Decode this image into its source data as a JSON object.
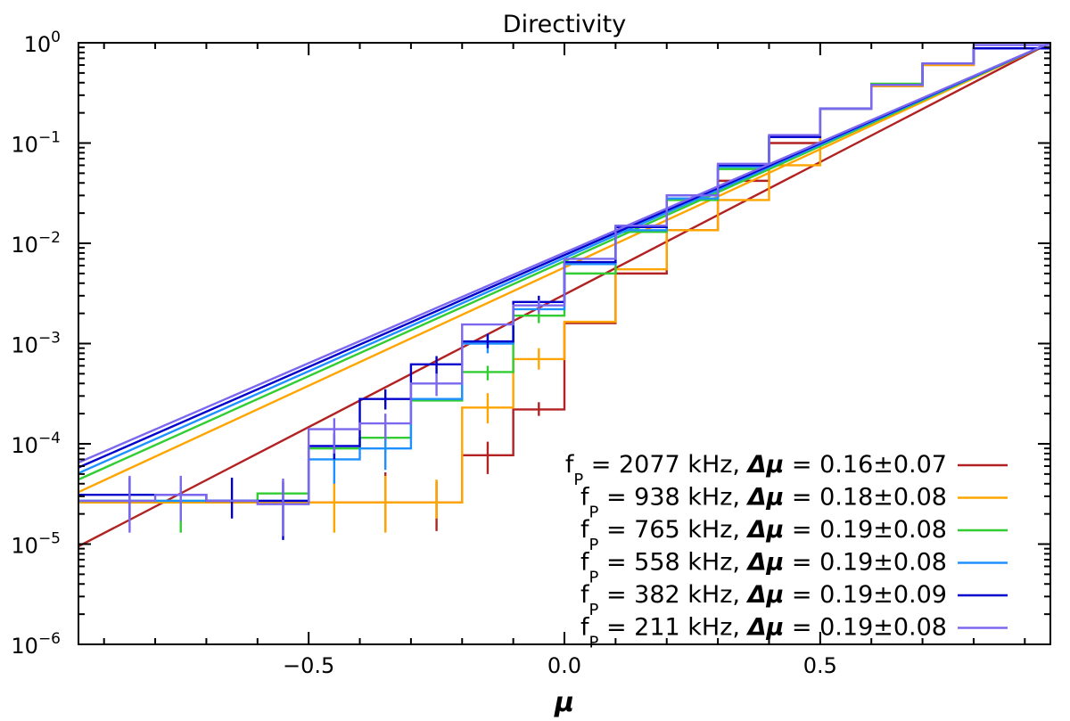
{
  "chart_data": {
    "type": "line",
    "title": "Directivity",
    "xlabel": "μ",
    "ylabel": "",
    "xlim": [
      -0.95,
      0.95
    ],
    "ylim": [
      1e-06,
      1
    ],
    "yscale": "log",
    "x_tick_values": [
      -0.5,
      0.0,
      0.5
    ],
    "x_tick_labels": [
      "−0.5",
      "0.0",
      "0.5"
    ],
    "y_ticks": [
      {
        "value": 1e-06,
        "base": "10",
        "exp": "−6"
      },
      {
        "value": 1e-05,
        "base": "10",
        "exp": "−5"
      },
      {
        "value": 0.0001,
        "base": "10",
        "exp": "−4"
      },
      {
        "value": 0.001,
        "base": "10",
        "exp": "−3"
      },
      {
        "value": 0.01,
        "base": "10",
        "exp": "−2"
      },
      {
        "value": 0.1,
        "base": "10",
        "exp": "−1"
      },
      {
        "value": 1,
        "base": "10",
        "exp": "0"
      }
    ],
    "legend_position": "bottom-right",
    "bin_edges": [
      -0.95,
      -0.8,
      -0.7,
      -0.6,
      -0.5,
      -0.4,
      -0.3,
      -0.2,
      -0.1,
      0.0,
      0.1,
      0.2,
      0.3,
      0.4,
      0.5,
      0.6,
      0.7,
      0.8,
      0.95
    ],
    "bin_centers": [
      -0.85,
      -0.75,
      -0.65,
      -0.55,
      -0.45,
      -0.35,
      -0.25,
      -0.15,
      -0.05,
      0.05,
      0.15,
      0.25,
      0.35,
      0.45,
      0.55,
      0.65,
      0.75,
      0.85
    ],
    "series": [
      {
        "name": "f_p = 2077 kHz",
        "legend": {
          "fp_prefix": "f",
          "fp_sub": "P",
          "text": " = 2077 kHz, ",
          "dmu": "Δμ",
          "value": " = 0.16±0.07"
        },
        "color": "#b22222",
        "fit": {
          "x": [
            -0.95,
            0.95
          ],
          "y": [
            9.5e-06,
            1.0
          ]
        },
        "hist_values": [
          2.6e-05,
          2.6e-05,
          2.6e-05,
          2.6e-05,
          2.6e-05,
          2.6e-05,
          2.6e-05,
          7.7e-05,
          0.00022,
          0.0016,
          0.005,
          0.0135,
          0.042,
          0.1,
          0.22,
          0.37,
          0.6,
          0.88
        ],
        "error_bars": [
          {
            "x": -0.35,
            "low": 1.35e-05,
            "high": 5.2e-05
          },
          {
            "x": -0.25,
            "low": 1.35e-05,
            "high": 4.2e-05
          },
          {
            "x": -0.15,
            "low": 5e-05,
            "high": 0.000105
          },
          {
            "x": -0.05,
            "low": 0.00019,
            "high": 0.00026
          }
        ]
      },
      {
        "name": "f_p = 938 kHz",
        "legend": {
          "fp_prefix": "f",
          "fp_sub": "P",
          "text": " = 938 kHz, ",
          "dmu": "Δμ",
          "value": " = 0.18±0.08"
        },
        "color": "#ffa500",
        "fit": {
          "x": [
            -0.95,
            0.95
          ],
          "y": [
            3.3e-05,
            1.0
          ]
        },
        "hist_values": [
          2.6e-05,
          2.6e-05,
          2.6e-05,
          2.6e-05,
          2.6e-05,
          2.6e-05,
          2.6e-05,
          0.00023,
          0.0007,
          0.00165,
          0.0055,
          0.0135,
          0.027,
          0.06,
          0.22,
          0.37,
          0.6,
          0.88
        ],
        "error_bars": [
          {
            "x": -0.45,
            "low": 1.3e-05,
            "high": 4.5e-05
          },
          {
            "x": -0.35,
            "low": 1.3e-05,
            "high": 4.8e-05
          },
          {
            "x": -0.25,
            "low": 1.8e-05,
            "high": 4.4e-05
          },
          {
            "x": -0.15,
            "low": 0.00016,
            "high": 0.00032
          },
          {
            "x": -0.05,
            "low": 0.00055,
            "high": 0.0009
          }
        ]
      },
      {
        "name": "f_p = 765 kHz",
        "legend": {
          "fp_prefix": "f",
          "fp_sub": "P",
          "text": " = 765 kHz, ",
          "dmu": "Δμ",
          "value": " = 0.19±0.08"
        },
        "color": "#32cd32",
        "fit": {
          "x": [
            -0.95,
            0.95
          ],
          "y": [
            4.4e-05,
            1.0
          ]
        },
        "hist_values": [
          2.7e-05,
          2.7e-05,
          2.7e-05,
          3.2e-05,
          9e-05,
          0.000115,
          0.00027,
          0.00052,
          0.0019,
          0.005,
          0.013,
          0.027,
          0.055,
          0.115,
          0.22,
          0.39,
          0.62,
          0.88
        ],
        "error_bars": [
          {
            "x": -0.75,
            "low": 1.3e-05,
            "high": 4.5e-05
          },
          {
            "x": -0.45,
            "low": 6.5e-05,
            "high": 0.00013
          },
          {
            "x": -0.35,
            "low": 8e-05,
            "high": 0.00015
          },
          {
            "x": -0.15,
            "low": 0.00043,
            "high": 0.0006
          },
          {
            "x": -0.05,
            "low": 0.0016,
            "high": 0.0022
          }
        ]
      },
      {
        "name": "f_p = 558 kHz",
        "legend": {
          "fp_prefix": "f",
          "fp_sub": "P",
          "text": " = 558 kHz, ",
          "dmu": "Δμ",
          "value": " = 0.19±0.08"
        },
        "color": "#1e90ff",
        "fit": {
          "x": [
            -0.95,
            0.95
          ],
          "y": [
            5.1e-05,
            1.0
          ]
        },
        "hist_values": [
          2.7e-05,
          2.7e-05,
          2.7e-05,
          2.7e-05,
          7e-05,
          9e-05,
          0.00028,
          0.001,
          0.0022,
          0.0062,
          0.0135,
          0.028,
          0.058,
          0.115,
          0.22,
          0.38,
          0.62,
          0.88
        ],
        "error_bars": [
          {
            "x": -0.45,
            "low": 4e-05,
            "high": 0.00011
          },
          {
            "x": -0.35,
            "low": 5.5e-05,
            "high": 0.00015
          },
          {
            "x": -0.15,
            "low": 0.0008,
            "high": 0.00125
          }
        ]
      },
      {
        "name": "f_p = 382 kHz",
        "legend": {
          "fp_prefix": "f",
          "fp_sub": "P",
          "text": " = 382 kHz, ",
          "dmu": "Δμ",
          "value": " = 0.19±0.09"
        },
        "color": "#0000cd",
        "fit": {
          "x": [
            -0.95,
            0.95
          ],
          "y": [
            5.8e-05,
            1.0
          ]
        },
        "hist_values": [
          3.1e-05,
          3.1e-05,
          2.7e-05,
          2.7e-05,
          9.5e-05,
          0.00028,
          0.00062,
          0.00105,
          0.0026,
          0.0065,
          0.0145,
          0.03,
          0.06,
          0.115,
          0.22,
          0.38,
          0.62,
          0.88
        ],
        "error_bars": [
          {
            "x": -0.85,
            "low": 1.8e-05,
            "high": 4.6e-05
          },
          {
            "x": -0.65,
            "low": 1.8e-05,
            "high": 4.6e-05
          },
          {
            "x": -0.55,
            "low": 1.1e-05,
            "high": 4.2e-05
          },
          {
            "x": -0.45,
            "low": 7e-05,
            "high": 0.000125
          },
          {
            "x": -0.35,
            "low": 0.00022,
            "high": 0.00035
          },
          {
            "x": -0.25,
            "low": 0.0005,
            "high": 0.00075
          },
          {
            "x": -0.15,
            "low": 0.0009,
            "high": 0.00125
          },
          {
            "x": -0.05,
            "low": 0.0022,
            "high": 0.003
          }
        ]
      },
      {
        "name": "f_p = 211 kHz",
        "legend": {
          "fp_prefix": "f",
          "fp_sub": "P",
          "text": " = 211 kHz, ",
          "dmu": "Δμ",
          "value": " = 0.19±0.08"
        },
        "color": "#7b68ee",
        "fit": {
          "x": [
            -0.95,
            0.95
          ],
          "y": [
            6.5e-05,
            1.0
          ]
        },
        "hist_values": [
          2.7e-05,
          3.1e-05,
          2.7e-05,
          2.5e-05,
          0.00014,
          0.00016,
          0.0004,
          0.00155,
          0.0024,
          0.007,
          0.015,
          0.03,
          0.062,
          0.12,
          0.22,
          0.38,
          0.62,
          0.95
        ],
        "error_bars": [
          {
            "x": -0.85,
            "low": 1.3e-05,
            "high": 4.8e-05
          },
          {
            "x": -0.75,
            "low": 1.7e-05,
            "high": 4.8e-05
          },
          {
            "x": -0.55,
            "low": 1.2e-05,
            "high": 4.5e-05
          },
          {
            "x": -0.45,
            "low": 8e-05,
            "high": 0.00018
          },
          {
            "x": -0.35,
            "low": 0.00011,
            "high": 0.0002
          },
          {
            "x": -0.25,
            "low": 0.0003,
            "high": 0.0005
          },
          {
            "x": -0.05,
            "low": 0.002,
            "high": 0.0027
          }
        ]
      }
    ]
  }
}
